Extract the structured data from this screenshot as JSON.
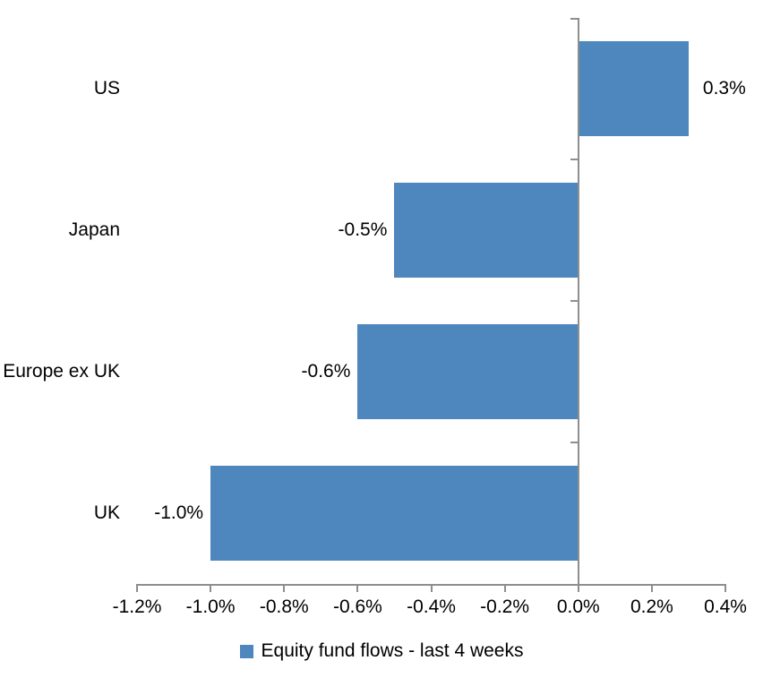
{
  "chart_data": {
    "type": "bar",
    "orientation": "horizontal",
    "title": "",
    "xlabel": "",
    "ylabel": "",
    "categories": [
      "US",
      "Japan",
      "Europe ex UK",
      "UK"
    ],
    "values": [
      0.3,
      -0.5,
      -0.6,
      -1.0
    ],
    "unit": "%",
    "data_labels": [
      "0.3%",
      "-0.5%",
      "-0.6%",
      "-1.0%"
    ],
    "series": [
      {
        "name": "Equity fund flows - last 4 weeks",
        "values": [
          0.3,
          -0.5,
          -0.6,
          -1.0
        ]
      }
    ],
    "xlim": [
      -1.2,
      0.4
    ],
    "x_tick_values": [
      -1.2,
      -1.0,
      -0.8,
      -0.6,
      -0.4,
      -0.2,
      0.0,
      0.2,
      0.4
    ],
    "x_ticks": [
      "-1.2%",
      "-1.0%",
      "-0.8%",
      "-0.6%",
      "-0.4%",
      "-0.2%",
      "0.0%",
      "0.2%",
      "0.4%"
    ],
    "grid": false,
    "legend_position": "bottom",
    "bar_color": "#4E86BE",
    "axis_color": "#8E8E8E",
    "text_color": "#000000"
  },
  "legend": {
    "label": "Equity fund flows - last 4 weeks",
    "swatch_color": "#4E86BE"
  }
}
